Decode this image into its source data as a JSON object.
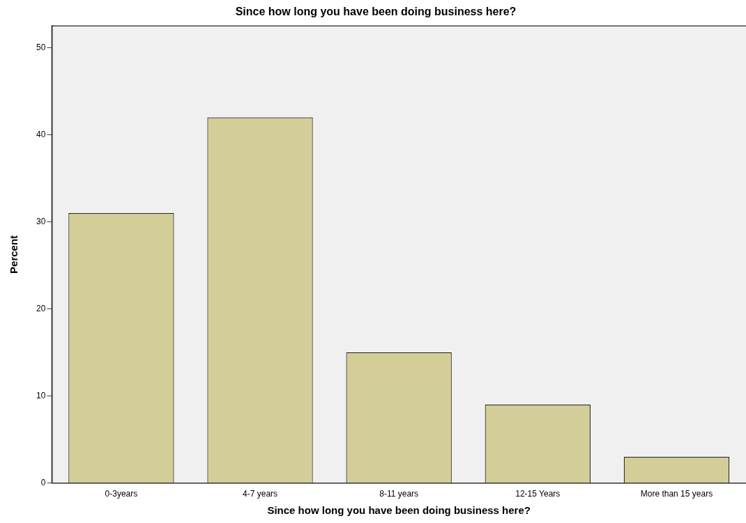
{
  "chart_data": {
    "type": "bar",
    "title": "Since how long you have been doing business here?",
    "xlabel": "Since how long you have been doing business here?",
    "ylabel": "Percent",
    "categories": [
      "0-3years",
      "4-7 years",
      "8-11 years",
      "12-15 Years",
      "More than 15 years"
    ],
    "values": [
      31,
      42,
      15,
      9,
      3
    ],
    "color": "#d3ce97",
    "ylim": [
      0,
      52.5
    ],
    "yticks": [
      0,
      10,
      20,
      30,
      40,
      50
    ],
    "grid": false,
    "legend": false
  }
}
